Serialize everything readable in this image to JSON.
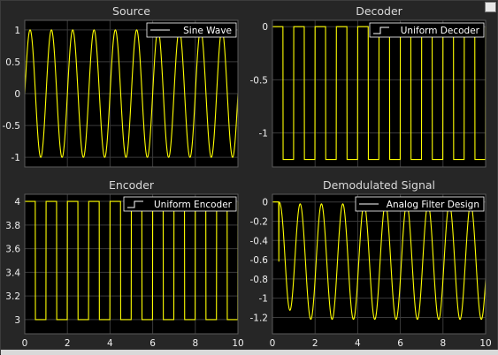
{
  "colors": {
    "figure_bg": "#262626",
    "axes_bg": "#000000",
    "grid": "#3a3a3a",
    "tick_text": "#f0f0f0",
    "title_text": "#d9d9d9",
    "trace": "#ffff00",
    "legend_bg": "#000000",
    "legend_border": "#ffffff",
    "legend_text": "#ffffff"
  },
  "chart_data": [
    {
      "type": "line",
      "title": "Source",
      "xlim": [
        0,
        10
      ],
      "ylim": [
        -1.15,
        1.15
      ],
      "yticks": [
        "-1",
        "-0.5",
        "0",
        "0.5",
        "1"
      ],
      "ytick_values": [
        -1,
        -0.5,
        0,
        0.5,
        1
      ],
      "xticks": [],
      "xtick_values": [
        0,
        2,
        4,
        6,
        8,
        10
      ],
      "grid": true,
      "legend_position": "top-right",
      "series": [
        {
          "name": "Sine Wave",
          "legend_symbol": "line",
          "function": "sine",
          "amplitude": 1,
          "frequency": 1,
          "phase": 0
        }
      ]
    },
    {
      "type": "line",
      "title": "Decoder",
      "xlim": [
        0,
        10
      ],
      "ylim": [
        -1.32,
        0.06
      ],
      "yticks": [
        "-1",
        "-0.5",
        "0"
      ],
      "ytick_values": [
        -1,
        -0.5,
        0
      ],
      "xticks": [],
      "xtick_values": [
        0,
        2,
        4,
        6,
        8,
        10
      ],
      "grid": true,
      "legend_position": "top-right",
      "series": [
        {
          "name": "Uniform Decoder",
          "legend_symbol": "step",
          "function": "square",
          "high": 0,
          "low": -1.25,
          "frequency": 1
        }
      ]
    },
    {
      "type": "line",
      "title": "Encoder",
      "xlim": [
        0,
        10
      ],
      "ylim": [
        2.88,
        4.06
      ],
      "yticks": [
        "3",
        "3.2",
        "3.4",
        "3.6",
        "3.8",
        "4"
      ],
      "ytick_values": [
        3,
        3.2,
        3.4,
        3.6,
        3.8,
        4
      ],
      "xticks": [
        "0",
        "2",
        "4",
        "6",
        "8",
        "10"
      ],
      "xtick_values": [
        0,
        2,
        4,
        6,
        8,
        10
      ],
      "grid": true,
      "legend_position": "top-right",
      "series": [
        {
          "name": "Uniform Encoder",
          "legend_symbol": "step",
          "function": "square",
          "high": 4,
          "low": 3,
          "frequency": 1
        }
      ]
    },
    {
      "type": "line",
      "title": "Demodulated Signal",
      "xlim": [
        0,
        10
      ],
      "ylim": [
        -1.37,
        0.08
      ],
      "yticks": [
        "-1.2",
        "-1",
        "-0.8",
        "-0.6",
        "-0.4",
        "-0.2",
        "0"
      ],
      "ytick_values": [
        -1.2,
        -1,
        -0.8,
        -0.6,
        -0.4,
        -0.2,
        0
      ],
      "xticks": [
        "0",
        "2",
        "4",
        "6",
        "8",
        "10"
      ],
      "xtick_values": [
        0,
        2,
        4,
        6,
        8,
        10
      ],
      "grid": true,
      "legend_position": "top-right",
      "series": [
        {
          "name": "Analog Filter Design",
          "legend_symbol": "line",
          "function": "filtered",
          "offset": -0.62,
          "amplitude": 0.6,
          "frequency": 1,
          "delay": 0.3,
          "start": 0
        }
      ]
    }
  ]
}
